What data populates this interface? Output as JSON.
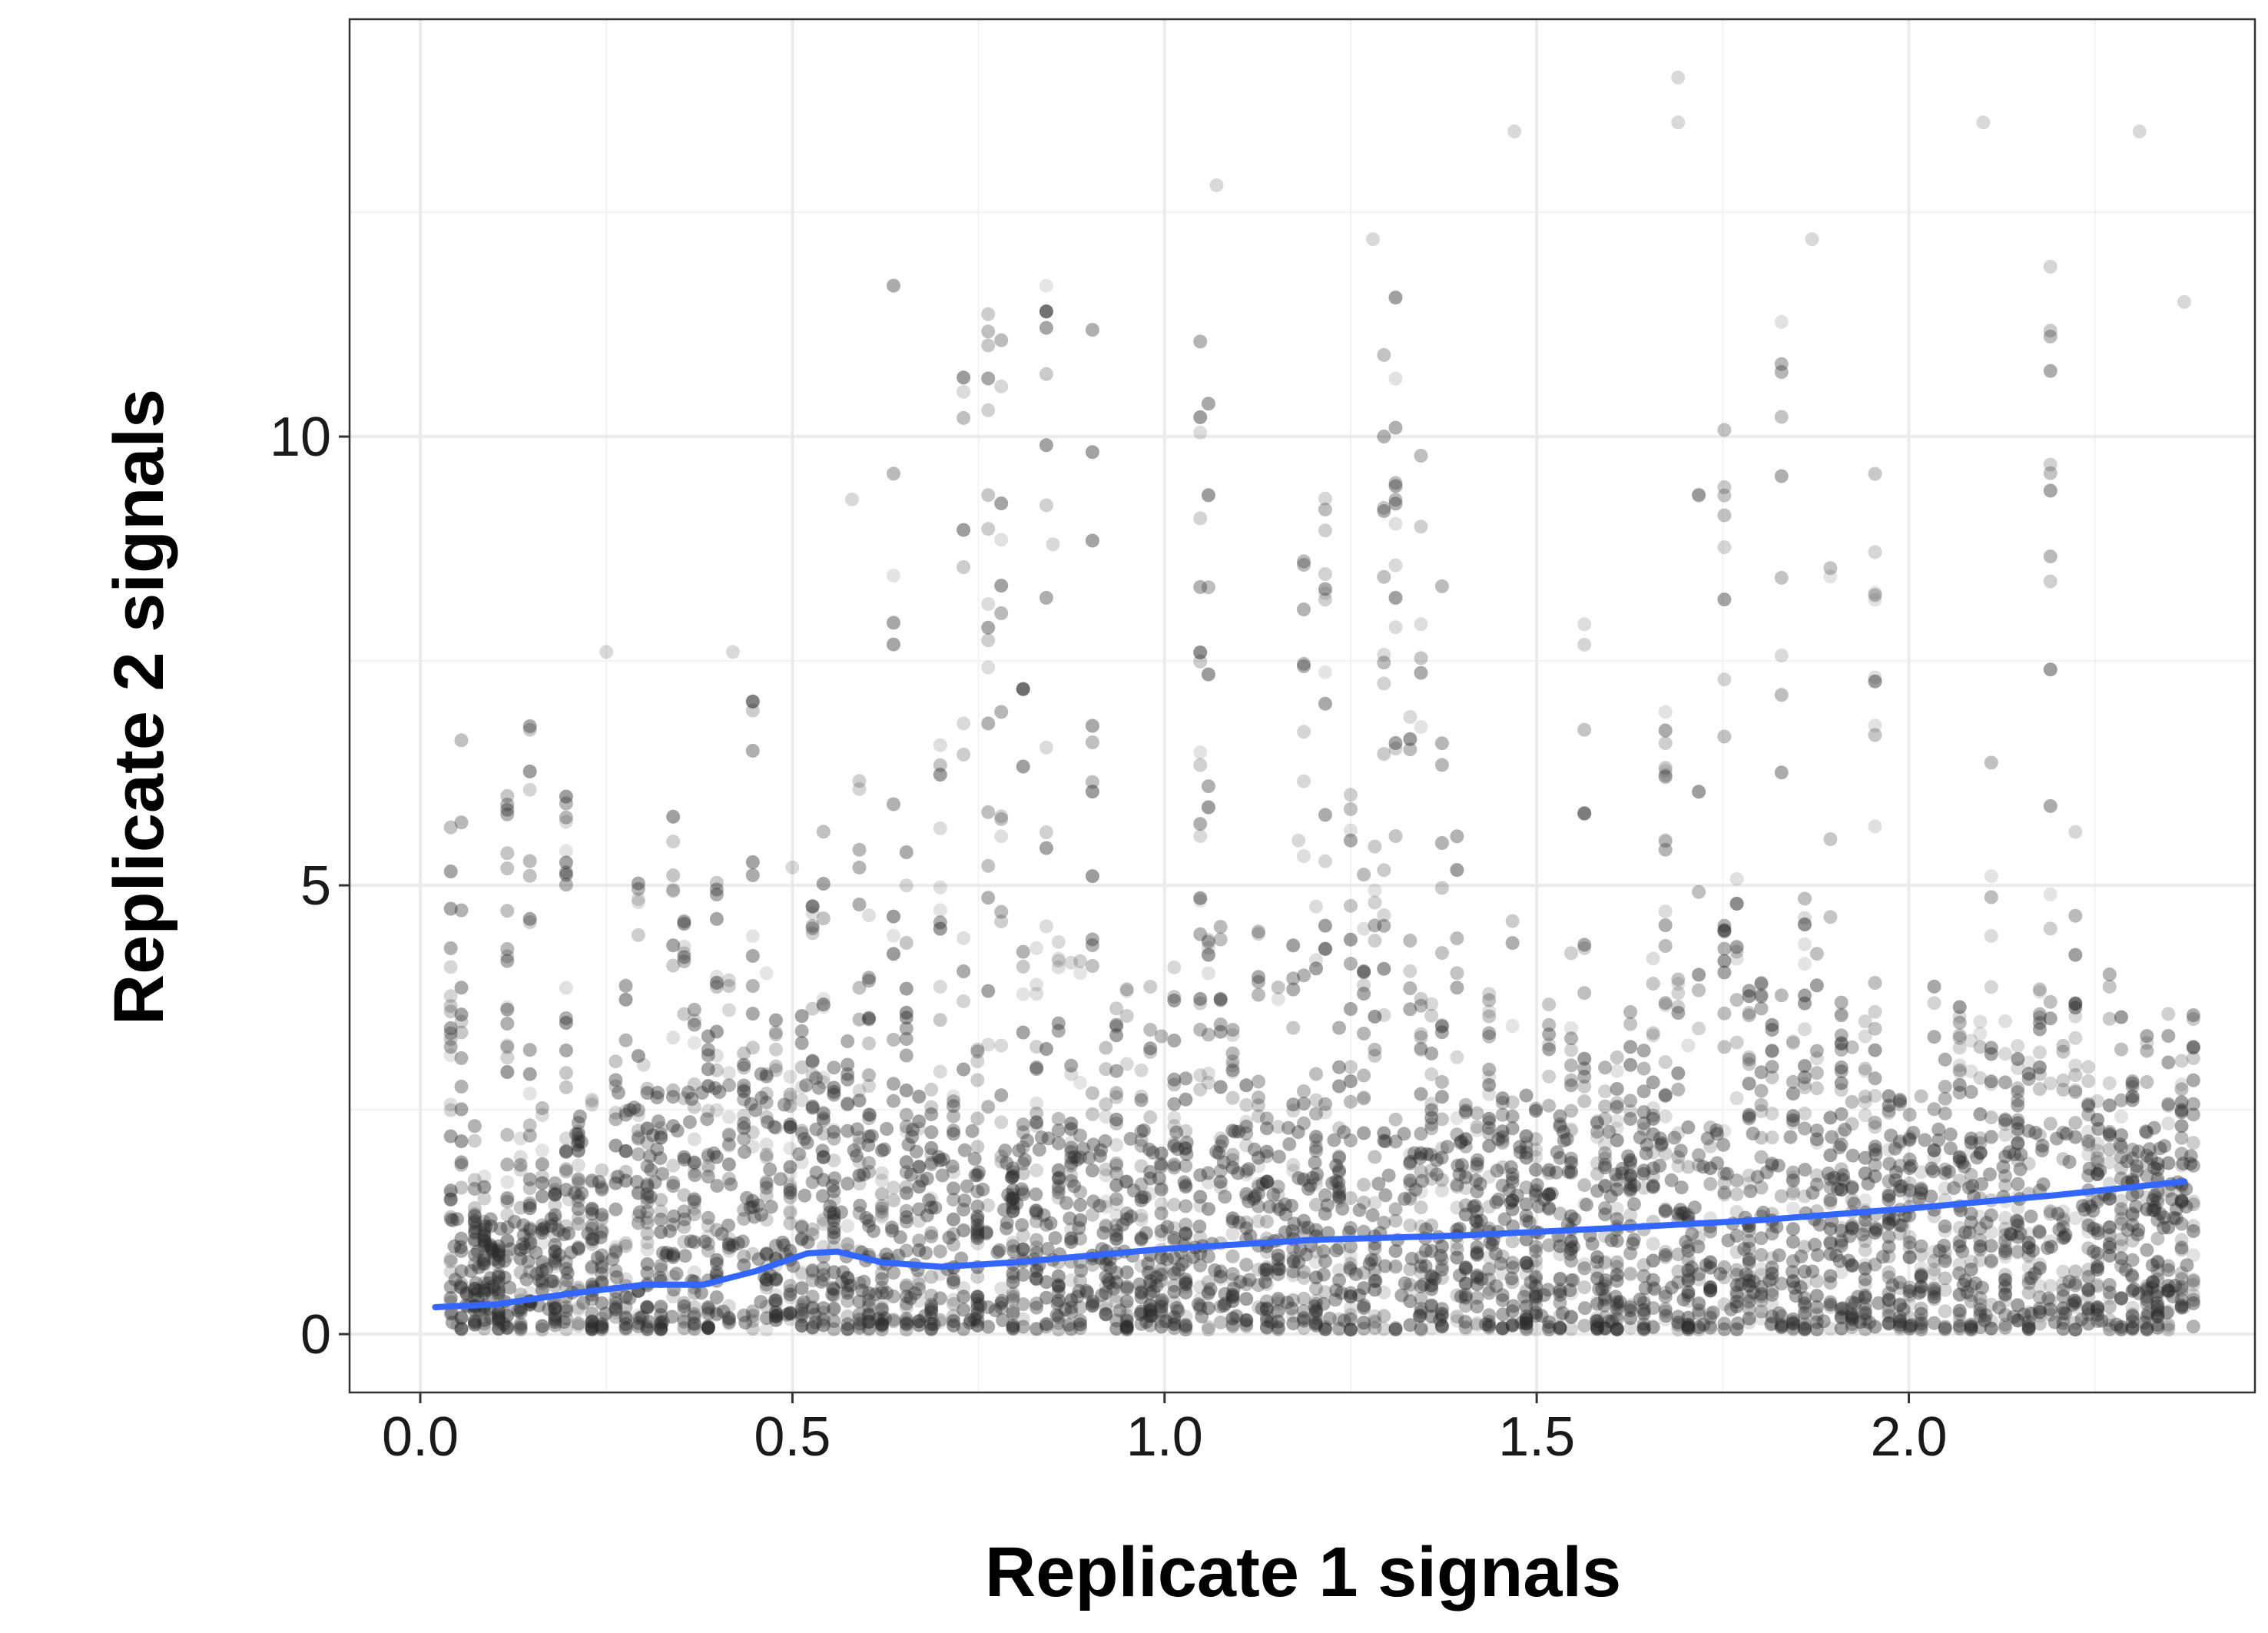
{
  "chart_data": {
    "type": "scatter",
    "title": "",
    "xlabel": "Replicate 1 signals",
    "ylabel": "Replicate 2 signals",
    "xlim": [
      -0.095,
      2.465
    ],
    "ylim": [
      -0.65,
      14.65
    ],
    "x_ticks": [
      0.0,
      0.5,
      1.0,
      1.5,
      2.0
    ],
    "x_tick_labels": [
      "0.0",
      "0.5",
      "1.0",
      "1.5",
      "2.0"
    ],
    "y_ticks": [
      0,
      5,
      10
    ],
    "y_tick_labels": [
      "0",
      "5",
      "10"
    ],
    "grid": true,
    "legend": "none",
    "series": [
      {
        "kind": "points",
        "color": "#2b2b2b",
        "point_alpha": 0.1,
        "x_range": [
          0.04,
          2.38
        ],
        "y_range": [
          0.0,
          14.0
        ],
        "description_points": [
          [
            0.05,
            0.1
          ],
          [
            0.1,
            0.5
          ],
          [
            0.2,
            1.5
          ],
          [
            0.25,
            7.6
          ],
          [
            0.3,
            3.0
          ],
          [
            0.42,
            7.6
          ],
          [
            0.5,
            5.2
          ],
          [
            0.58,
            9.3
          ],
          [
            0.85,
            8.8
          ],
          [
            1.07,
            12.8
          ],
          [
            1.18,
            5.5
          ],
          [
            1.28,
            12.2
          ],
          [
            1.47,
            13.4
          ],
          [
            1.69,
            14.0
          ],
          [
            1.69,
            13.5
          ],
          [
            1.87,
            12.2
          ],
          [
            2.1,
            13.5
          ],
          [
            2.31,
            13.4
          ],
          [
            2.37,
            11.5
          ],
          [
            2.37,
            0.3
          ]
        ]
      },
      {
        "kind": "smooth",
        "color": "#3366ff",
        "x": [
          0.02,
          0.1,
          0.2,
          0.3,
          0.38,
          0.45,
          0.52,
          0.56,
          0.62,
          0.7,
          0.8,
          1.0,
          1.2,
          1.4,
          1.6,
          1.8,
          2.0,
          2.2,
          2.37
        ],
        "y": [
          0.3,
          0.33,
          0.45,
          0.55,
          0.55,
          0.7,
          0.9,
          0.92,
          0.8,
          0.75,
          0.8,
          0.95,
          1.05,
          1.1,
          1.18,
          1.27,
          1.4,
          1.55,
          1.7
        ]
      }
    ]
  }
}
